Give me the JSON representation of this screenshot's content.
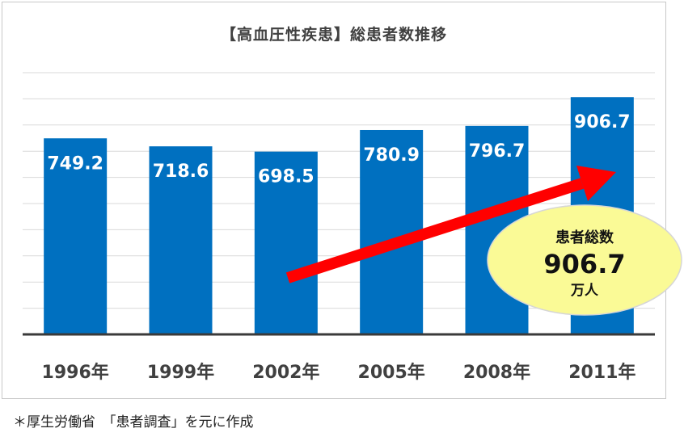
{
  "chart_data": {
    "type": "bar",
    "title": "【高血圧性疾患】総患者数推移",
    "categories": [
      "1996年",
      "1999年",
      "2002年",
      "2005年",
      "2008年",
      "2011年"
    ],
    "values": [
      749.2,
      718.6,
      698.5,
      780.9,
      796.7,
      906.7
    ],
    "value_labels": [
      "749.2",
      "718.6",
      "698.5",
      "780.9",
      "796.7",
      "906.7"
    ],
    "ylim": [
      0,
      1000
    ],
    "grid": true,
    "bar_color": "#0070c0",
    "annotation": {
      "line1": "患者総数",
      "value": "906.7",
      "unit": "万人",
      "bubble_color": "#fafa96",
      "arrow_color": "#ff0000"
    }
  },
  "footnote": "＊厚生労働省　「患者調査」を元に作成"
}
